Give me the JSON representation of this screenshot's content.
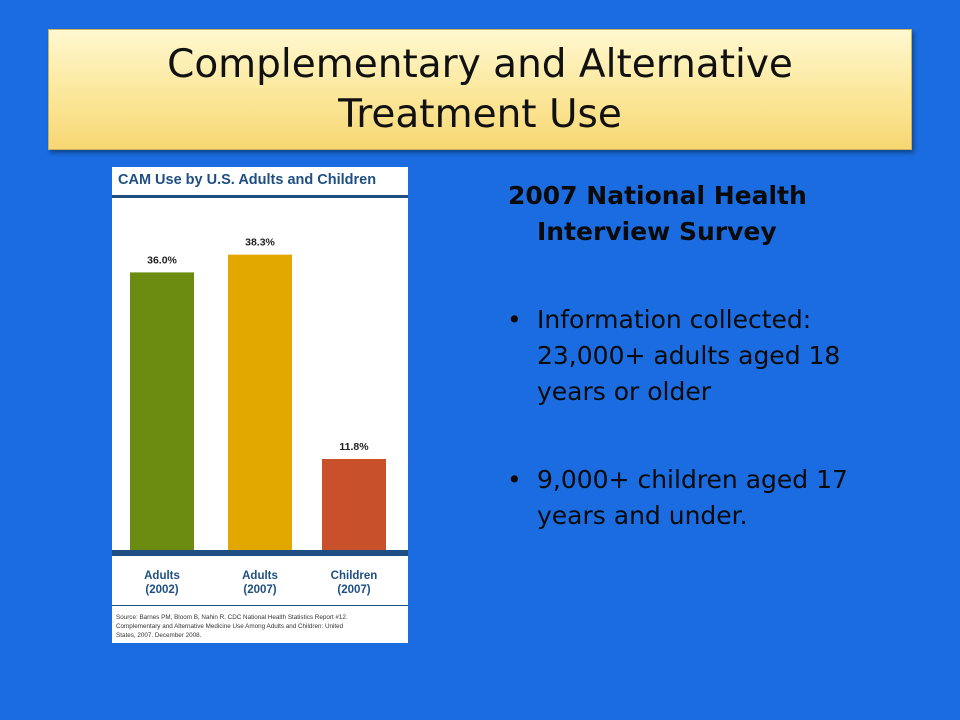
{
  "slide": {
    "title": "Complementary and Alternative Treatment Use",
    "survey_title": "2007 National Health Interview Survey",
    "bullets": [
      "Information collected: 23,000+ adults aged 18 years or older",
      "9,000+ children aged 17 years and under."
    ]
  },
  "chart_data": {
    "type": "bar",
    "title": "CAM Use by U.S. Adults and Children",
    "categories": [
      "Adults (2002)",
      "Adults (2007)",
      "Children (2007)"
    ],
    "category_lines": [
      [
        "Adults",
        "(2002)"
      ],
      [
        "Adults",
        "(2007)"
      ],
      [
        "Children",
        "(2007)"
      ]
    ],
    "values": [
      36.0,
      38.3,
      11.8
    ],
    "value_labels": [
      "36.0%",
      "38.3%",
      "11.8%"
    ],
    "bar_colors": [
      "#6b8c10",
      "#e3a800",
      "#c8502a"
    ],
    "ylim": [
      0,
      45
    ],
    "source_lines": [
      "Source: Barnes PM, Bloom B, Nahin R. CDC National Health Statistics Report #12.",
      "Complementary and Alternative Medicine Use Among Adults and Children: United",
      "States, 2007. December 2008."
    ]
  },
  "colors": {
    "background": "#1a6ce0",
    "chart_accent": "#1f4f82"
  }
}
